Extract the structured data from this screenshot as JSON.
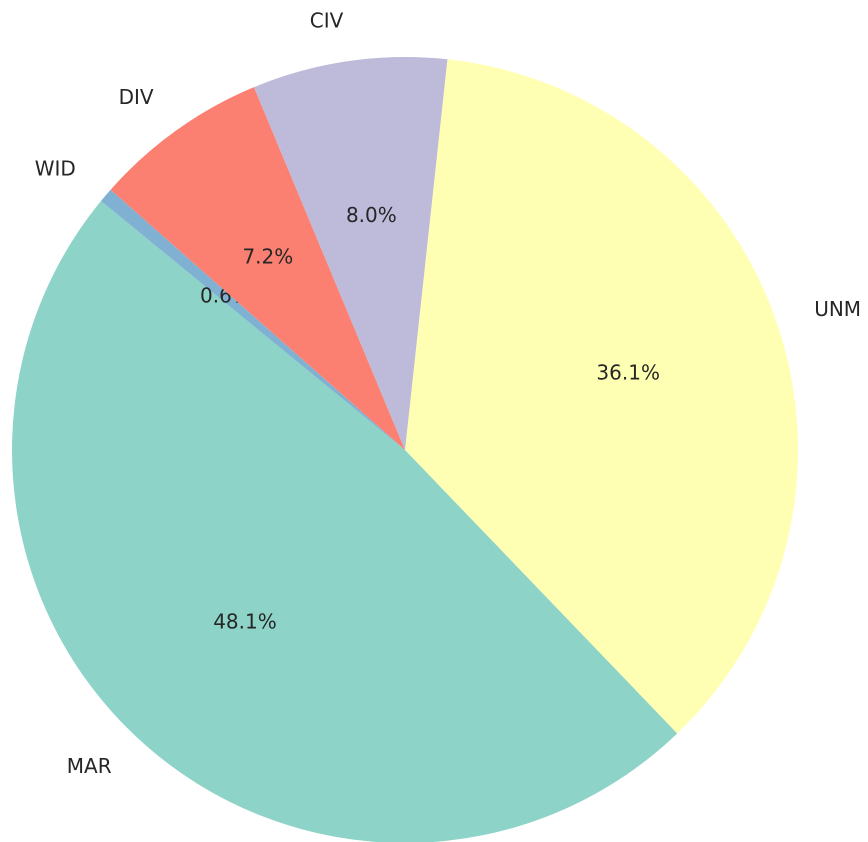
{
  "chart_data": {
    "type": "pie",
    "categories": [
      "UNM",
      "MAR",
      "WID",
      "DIV",
      "CIV"
    ],
    "values": [
      36.1,
      48.1,
      0.6,
      7.2,
      8.0
    ],
    "value_labels": [
      "36.1%",
      "48.1%",
      "0.6%",
      "7.2%",
      "8.0%"
    ],
    "colors": [
      "#ffffb3",
      "#8dd3c7",
      "#80b1d3",
      "#fb8072",
      "#bebada"
    ]
  }
}
